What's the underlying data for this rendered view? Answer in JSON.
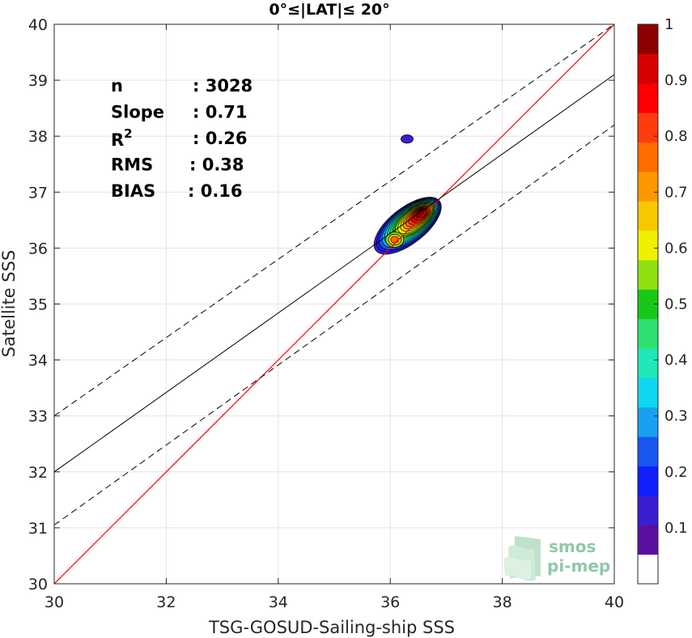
{
  "chart_data": {
    "type": "density-contour-scatter",
    "title": "0°≤|LAT|≤ 20°",
    "xlabel": "TSG-GOSUD-Sailing-ship SSS",
    "ylabel": "Satellite SSS",
    "xlim": [
      30,
      40
    ],
    "ylim": [
      30,
      40
    ],
    "xticks": [
      30,
      32,
      34,
      36,
      38,
      40
    ],
    "yticks": [
      30,
      31,
      32,
      33,
      34,
      35,
      36,
      37,
      38,
      39,
      40
    ],
    "grid": true,
    "stats": [
      {
        "key": "n",
        "value": ": 3028"
      },
      {
        "key": "Slope",
        "value": ": 0.71"
      },
      {
        "key": "R",
        "sup": "2",
        "value": ": 0.26"
      },
      {
        "key": "RMS",
        "value": ": 0.38"
      },
      {
        "key": "BIAS",
        "value": ": 0.16"
      }
    ],
    "lines": {
      "identity": {
        "slope": 1,
        "intercept": 0,
        "color": "#ff0000"
      },
      "fit": {
        "slope": 0.71,
        "x0": 30,
        "y0": 32.0,
        "color": "#000000"
      },
      "fit_upper": {
        "x0": 30,
        "y0": 33.0,
        "x1": 40,
        "y1": 40.0,
        "dash": true
      },
      "fit_lower": {
        "x0": 30,
        "y0": 31.05,
        "x1": 40,
        "y1": 38.2,
        "dash": true
      }
    },
    "density_peaks": [
      {
        "x": 36.55,
        "y": 36.62,
        "level": 1.0
      },
      {
        "x": 36.08,
        "y": 36.15,
        "level": 0.75
      },
      {
        "x": 36.3,
        "y": 37.95,
        "level": 0.1
      }
    ],
    "colorbar": {
      "range": [
        0,
        1
      ],
      "ticks": [
        "0.1",
        "0.2",
        "0.3",
        "0.4",
        "0.5",
        "0.6",
        "0.7",
        "0.8",
        "0.9",
        "1"
      ],
      "colors": [
        "#ffffff",
        "#5a0fa0",
        "#3a1ed0",
        "#1020ff",
        "#1858f0",
        "#1aa0f0",
        "#10d8f0",
        "#20e8b8",
        "#30e070",
        "#18c818",
        "#90e010",
        "#f0f000",
        "#f8c800",
        "#ff9800",
        "#ff6c00",
        "#ff3c10",
        "#ff0000",
        "#d80000",
        "#8c0000"
      ]
    },
    "logo_lines": [
      "smos",
      "pi-mep"
    ]
  }
}
